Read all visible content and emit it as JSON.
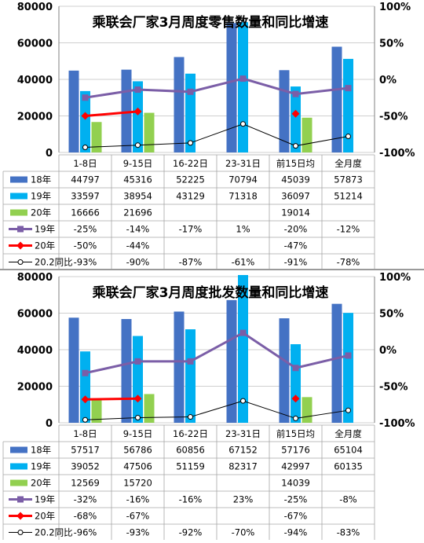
{
  "colors": {
    "s18": "#4472C4",
    "s19": "#00B0F0",
    "s20": "#92D050",
    "l19": "#7B5EA7",
    "l20": "#FF0000",
    "lmom": "#000000",
    "grid": "#bfbfbf"
  },
  "chart_data": [
    {
      "type": "bar",
      "title": "乘联会厂家3月周度零售数量和同比增速",
      "categories": [
        "1-8日",
        "9-15日",
        "16-22日",
        "23-31日",
        "前15日均",
        "全月度"
      ],
      "yticks": [
        "0",
        "20000",
        "40000",
        "60000",
        "80000"
      ],
      "y2ticks": [
        "-100%",
        "-50%",
        "0%",
        "50%",
        "100%"
      ],
      "ylim": [
        0,
        80000
      ],
      "y2lim": [
        -100,
        100
      ],
      "series": [
        {
          "name": "18年",
          "kind": "bar",
          "color_key": "s18",
          "marker": "rect",
          "values": [
            44797,
            45316,
            52225,
            70794,
            45039,
            57873
          ],
          "labels": [
            "44797",
            "45316",
            "52225",
            "70794",
            "45039",
            "57873"
          ]
        },
        {
          "name": "19年",
          "kind": "bar",
          "color_key": "s19",
          "marker": "rect",
          "values": [
            33597,
            38954,
            43129,
            71318,
            36097,
            51214
          ],
          "labels": [
            "33597",
            "38954",
            "43129",
            "71318",
            "36097",
            "51214"
          ]
        },
        {
          "name": "20年",
          "kind": "bar",
          "color_key": "s20",
          "marker": "rect",
          "values": [
            16666,
            21696,
            null,
            null,
            19014,
            null
          ],
          "labels": [
            "16666",
            "21696",
            "",
            "",
            "19014",
            ""
          ]
        },
        {
          "name": "19年",
          "kind": "line",
          "color_key": "l19",
          "marker": "square",
          "values": [
            -25,
            -14,
            -17,
            1,
            -20,
            -12
          ],
          "labels": [
            "-25%",
            "-14%",
            "-17%",
            "1%",
            "-20%",
            "-12%"
          ]
        },
        {
          "name": "20年",
          "kind": "line",
          "color_key": "l20",
          "marker": "diamond",
          "values": [
            -50,
            -44,
            null,
            null,
            -47,
            null
          ],
          "labels": [
            "-50%",
            "-44%",
            "",
            "",
            "-47%",
            ""
          ]
        },
        {
          "name": "20.2同比",
          "kind": "line",
          "color_key": "lmom",
          "marker": "circle",
          "values": [
            -93,
            -90,
            -87,
            -61,
            -91,
            -78
          ],
          "labels": [
            "-93%",
            "-90%",
            "-87%",
            "-61%",
            "-91%",
            "-78%"
          ]
        }
      ]
    },
    {
      "type": "bar",
      "title": "乘联会厂家3月周度批发数量和同比增速",
      "categories": [
        "1-8日",
        "9-15日",
        "16-22日",
        "23-31日",
        "前15日均",
        "全月度"
      ],
      "yticks": [
        "0",
        "20000",
        "40000",
        "60000",
        "80000"
      ],
      "y2ticks": [
        "-100%",
        "-50%",
        "0%",
        "50%",
        "100%"
      ],
      "ylim": [
        0,
        80000
      ],
      "y2lim": [
        -100,
        100
      ],
      "series": [
        {
          "name": "18年",
          "kind": "bar",
          "color_key": "s18",
          "marker": "rect",
          "values": [
            57517,
            56786,
            60856,
            67152,
            57176,
            65104
          ],
          "labels": [
            "57517",
            "56786",
            "60856",
            "67152",
            "57176",
            "65104"
          ]
        },
        {
          "name": "19年",
          "kind": "bar",
          "color_key": "s19",
          "marker": "rect",
          "values": [
            39052,
            47506,
            51159,
            82317,
            42997,
            60135
          ],
          "labels": [
            "39052",
            "47506",
            "51159",
            "82317",
            "42997",
            "60135"
          ]
        },
        {
          "name": "20年",
          "kind": "bar",
          "color_key": "s20",
          "marker": "rect",
          "values": [
            12569,
            15720,
            null,
            null,
            14039,
            null
          ],
          "labels": [
            "12569",
            "15720",
            "",
            "",
            "14039",
            ""
          ]
        },
        {
          "name": "19年",
          "kind": "line",
          "color_key": "l19",
          "marker": "square",
          "values": [
            -32,
            -16,
            -16,
            23,
            -25,
            -8
          ],
          "labels": [
            "-32%",
            "-16%",
            "-16%",
            "23%",
            "-25%",
            "-8%"
          ]
        },
        {
          "name": "20年",
          "kind": "line",
          "color_key": "l20",
          "marker": "diamond",
          "values": [
            -68,
            -67,
            null,
            null,
            -67,
            null
          ],
          "labels": [
            "-68%",
            "-67%",
            "",
            "",
            "-67%",
            ""
          ]
        },
        {
          "name": "20.2同比",
          "kind": "line",
          "color_key": "lmom",
          "marker": "circle",
          "values": [
            -96,
            -93,
            -92,
            -70,
            -94,
            -83
          ],
          "labels": [
            "-96%",
            "-93%",
            "-92%",
            "-70%",
            "-94%",
            "-83%"
          ]
        }
      ]
    }
  ]
}
